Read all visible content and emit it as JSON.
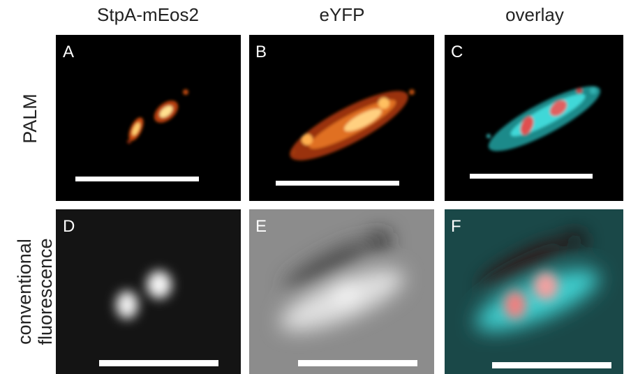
{
  "columns": [
    "StpA-mEos2",
    "eYFP",
    "overlay"
  ],
  "rows": [
    {
      "label": "PALM"
    },
    {
      "label_lines": [
        "conventional",
        "fluorescence"
      ]
    }
  ],
  "panels": [
    "A",
    "B",
    "C",
    "D",
    "E",
    "F"
  ]
}
